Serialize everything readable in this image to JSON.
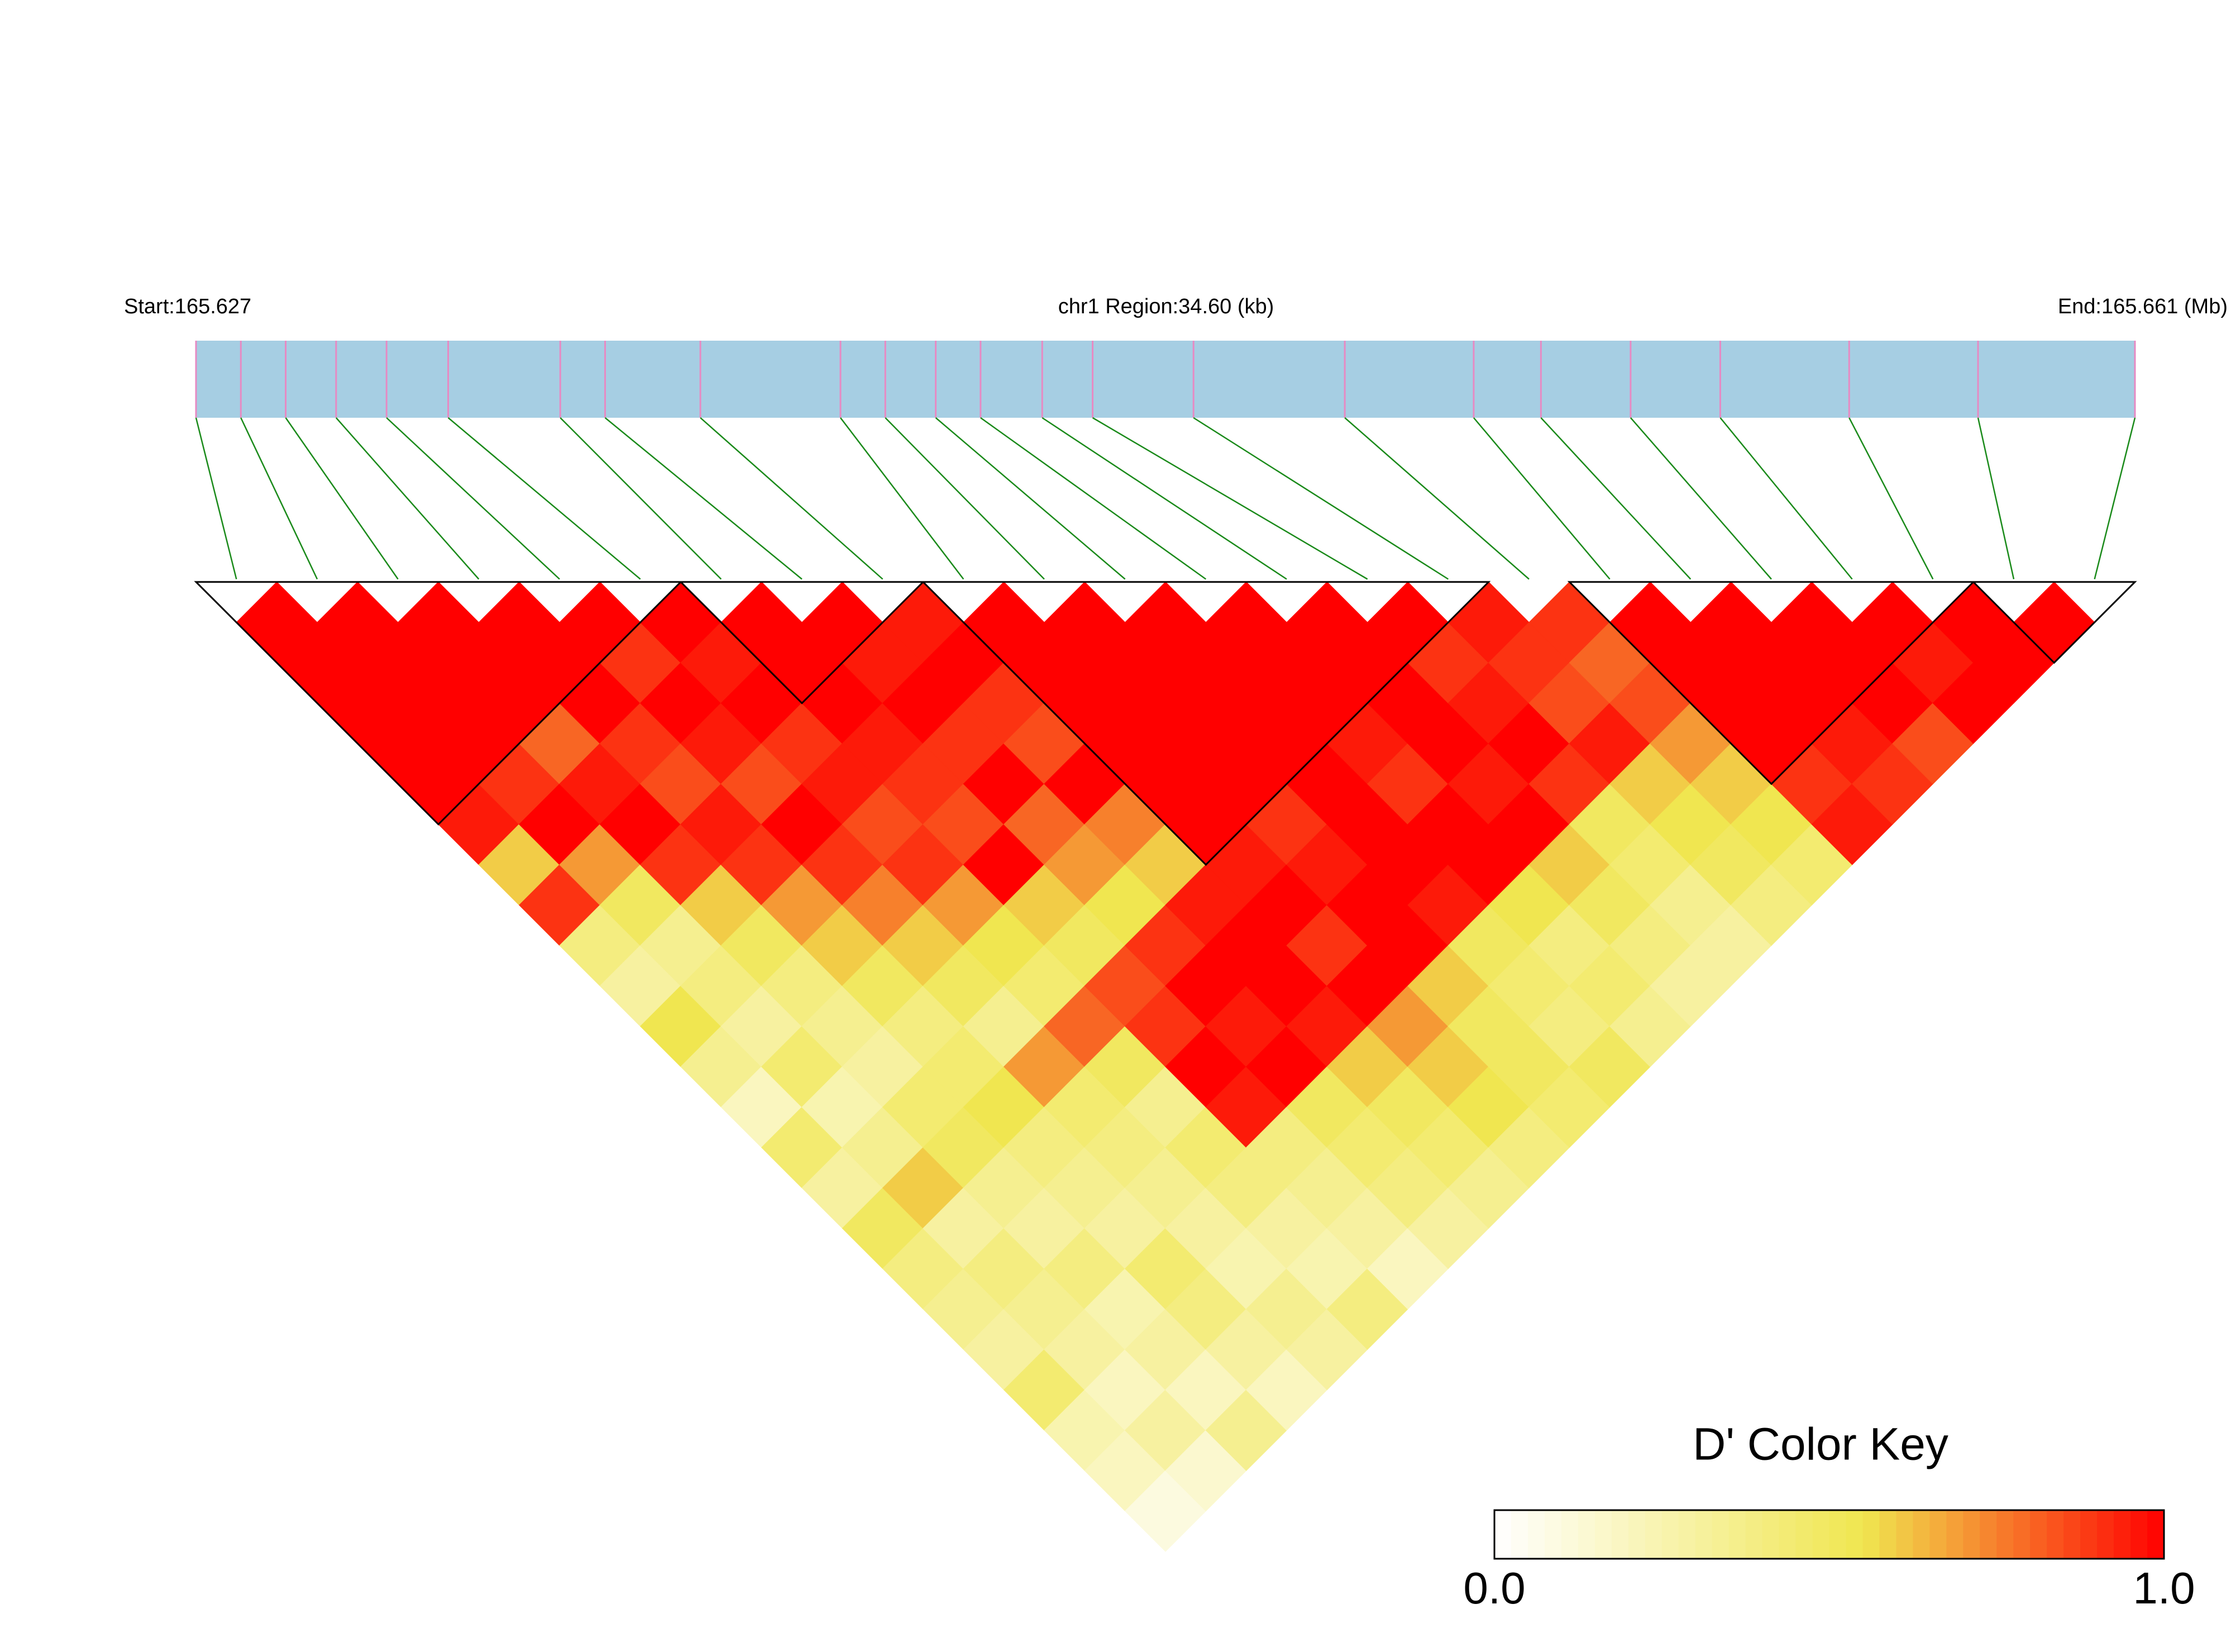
{
  "chart_data": {
    "type": "ld_heatmap",
    "start_label": "Start:165.627",
    "region_label": "chr1 Region:34.60 (kb)",
    "end_label": "End:165.661 (Mb)",
    "xlim": [
      0,
      34.6
    ],
    "snp_positions": [
      0,
      0.8,
      1.6,
      2.5,
      3.4,
      4.5,
      6.5,
      7.3,
      9.0,
      11.5,
      12.3,
      13.2,
      14.0,
      15.1,
      16.0,
      17.8,
      20.5,
      22.8,
      24.0,
      25.6,
      27.2,
      29.5,
      31.8,
      34.6
    ],
    "dprime": [
      [
        1,
        1,
        1,
        1,
        1,
        0.95,
        0.6,
        0.9,
        0.4,
        0.3,
        0.55,
        0.35,
        0.2,
        0.45,
        0.3,
        0.5,
        0.4,
        0.35,
        0.3,
        0.45,
        0.25,
        0.2,
        0.1
      ],
      [
        1,
        1,
        1,
        1,
        0.9,
        1,
        0.7,
        0.5,
        0.35,
        0.4,
        0.3,
        0.45,
        0.25,
        0.35,
        0.6,
        0.3,
        0.4,
        0.35,
        0.3,
        0.2,
        0.3,
        0.15
      ],
      [
        1,
        1,
        1,
        0.8,
        0.95,
        1,
        0.9,
        0.6,
        0.5,
        0.4,
        0.35,
        0.3,
        0.45,
        0.5,
        0.35,
        0.3,
        0.4,
        0.25,
        0.3,
        0.2,
        0.35
      ],
      [
        1,
        1,
        1,
        0.9,
        0.85,
        0.95,
        0.9,
        0.7,
        0.6,
        0.5,
        0.4,
        0.45,
        0.55,
        0.4,
        0.35,
        0.3,
        0.45,
        0.4,
        0.3,
        0.2
      ],
      [
        1,
        0.9,
        1,
        0.95,
        0.85,
        1,
        0.9,
        0.75,
        0.6,
        0.5,
        0.35,
        0.7,
        0.45,
        0.4,
        0.35,
        0.3,
        0.25,
        0.35,
        0.3
      ],
      [
        1,
        0.95,
        1,
        0.9,
        0.95,
        0.85,
        0.9,
        0.7,
        0.55,
        0.45,
        0.8,
        0.5,
        0.35,
        0.45,
        0.4,
        0.3,
        0.25,
        0.4
      ],
      [
        1,
        1,
        1,
        0.95,
        0.9,
        0.85,
        1,
        0.6,
        0.5,
        0.85,
        0.9,
        1,
        0.95,
        0.4,
        0.35,
        0.3,
        0.2
      ],
      [
        1,
        0.95,
        1,
        0.9,
        1,
        0.8,
        0.7,
        0.55,
        0.9,
        1,
        0.95,
        1,
        0.5,
        0.45,
        0.4,
        0.3
      ],
      [
        0.95,
        1,
        0.9,
        0.85,
        1,
        0.75,
        0.6,
        0.95,
        1,
        1,
        0.95,
        0.6,
        0.5,
        0.45,
        0.35
      ],
      [
        1,
        1,
        1,
        1,
        1,
        1,
        0.95,
        1,
        0.9,
        1,
        0.7,
        0.6,
        0.55,
        0.4
      ],
      [
        1,
        1,
        1,
        1,
        1,
        0.9,
        0.95,
        1,
        1,
        0.6,
        0.5,
        0.5,
        0.45
      ],
      [
        1,
        1,
        1,
        1,
        1,
        1,
        1,
        0.95,
        0.5,
        0.45,
        0.4,
        0.5
      ],
      [
        1,
        1,
        1,
        0.95,
        0.9,
        1,
        1,
        0.55,
        0.4,
        0.45,
        0.35
      ],
      [
        1,
        1,
        1,
        1,
        0.95,
        1,
        0.6,
        0.5,
        0.4,
        0.3
      ],
      [
        1,
        0.9,
        0.95,
        1,
        0.9,
        0.5,
        0.45,
        0.35,
        0.3
      ],
      [
        0.95,
        0.9,
        0.85,
        0.95,
        0.6,
        0.55,
        0.5,
        0.4
      ],
      [
        0.9,
        0.8,
        0.85,
        0.7,
        0.6,
        0.55,
        0.45
      ],
      [
        1,
        1,
        1,
        1,
        0.9,
        0.95
      ],
      [
        1,
        1,
        1,
        0.95,
        0.9
      ],
      [
        1,
        1,
        1,
        0.85
      ],
      [
        1,
        0.95,
        1
      ],
      [
        1,
        1
      ],
      [
        1
      ]
    ],
    "blocks": [
      [
        0,
        5
      ],
      [
        6,
        8
      ],
      [
        9,
        15
      ],
      [
        17,
        21
      ],
      [
        22,
        23
      ]
    ],
    "bar_color": "#a6cee3",
    "snp_line_color": "#e78ac3",
    "link_color": "#1a8a1a",
    "colorbar_title": "D' Color Key",
    "colorbar_lim": [
      0,
      1
    ],
    "colorbar_ticks": [
      {
        "value": 0,
        "label": "0.0"
      },
      {
        "value": 1,
        "label": "1.0"
      }
    ]
  }
}
